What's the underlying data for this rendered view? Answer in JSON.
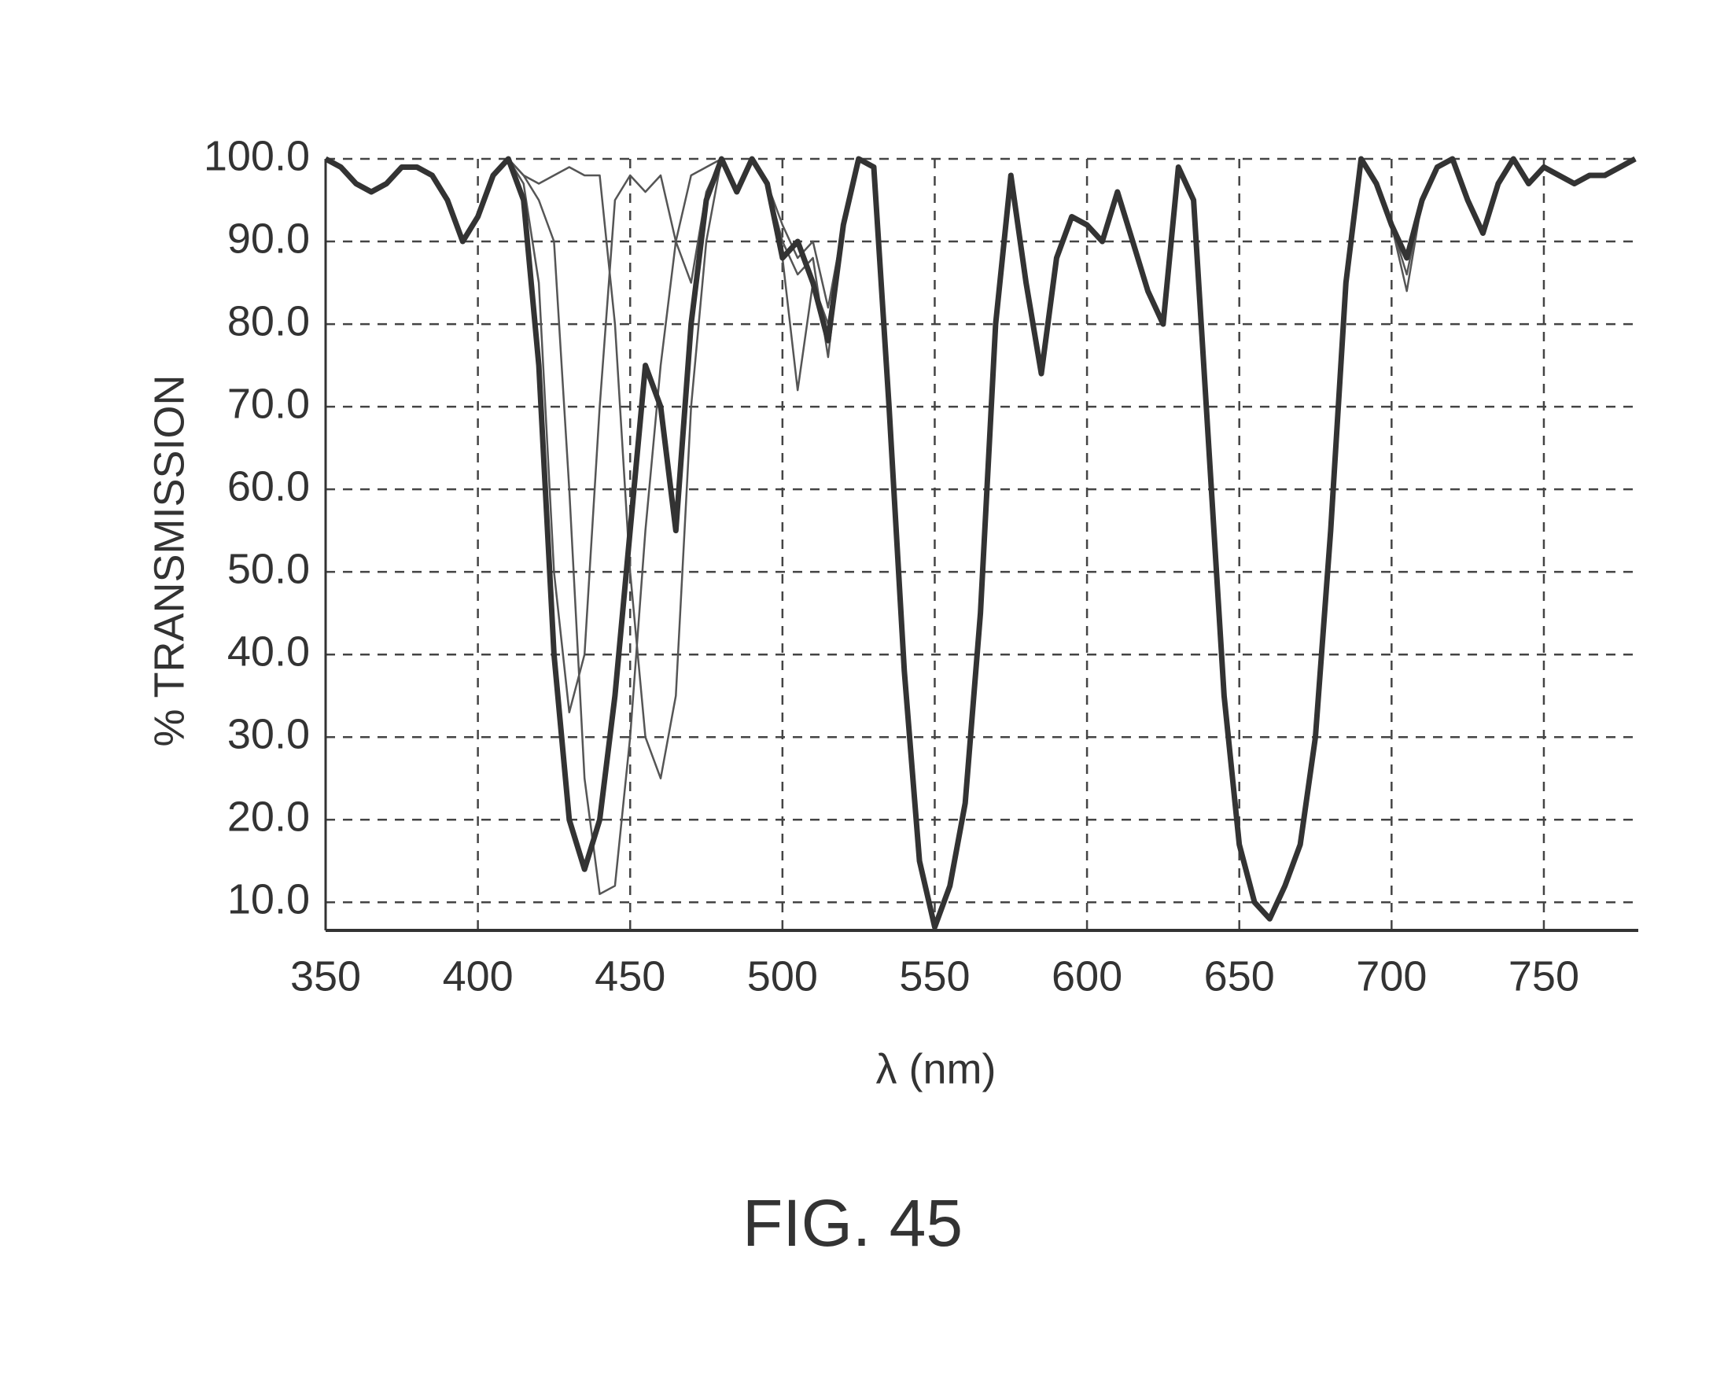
{
  "chart_data": {
    "type": "line",
    "figure_label": "FIG. 45",
    "xlabel": "λ (nm)",
    "ylabel": "% TRANSMISSION",
    "x": [
      350,
      355,
      360,
      365,
      370,
      375,
      380,
      385,
      390,
      395,
      400,
      405,
      410,
      415,
      420,
      425,
      430,
      435,
      440,
      445,
      450,
      455,
      460,
      465,
      470,
      475,
      480,
      485,
      490,
      495,
      500,
      505,
      510,
      515,
      520,
      525,
      530,
      535,
      540,
      545,
      550,
      555,
      560,
      565,
      570,
      575,
      580,
      585,
      590,
      595,
      600,
      605,
      610,
      615,
      620,
      625,
      630,
      635,
      640,
      645,
      650,
      655,
      660,
      665,
      670,
      675,
      680,
      685,
      690,
      695,
      700,
      705,
      710,
      715,
      720,
      725,
      730,
      735,
      740,
      745,
      750,
      755,
      760,
      765,
      770,
      775,
      780
    ],
    "series": [
      {
        "color": "#333333",
        "values": [
          100,
          99,
          97,
          96,
          97,
          99,
          99,
          98,
          95,
          90,
          93,
          98,
          100,
          95,
          75,
          40,
          20,
          14,
          20,
          35,
          55,
          75,
          70,
          55,
          80,
          95,
          100,
          96,
          100,
          97,
          88,
          90,
          85,
          78,
          92,
          100,
          99,
          70,
          38,
          15,
          7,
          12,
          22,
          45,
          80,
          98,
          85,
          74,
          88,
          93,
          92,
          90,
          96,
          90,
          84,
          80,
          99,
          95,
          65,
          35,
          17,
          10,
          8,
          12,
          17,
          30,
          55,
          85,
          100,
          97,
          92,
          88,
          95,
          99,
          100,
          95,
          91,
          97,
          100,
          97,
          99,
          98,
          97,
          98,
          98,
          99,
          100
        ]
      },
      {
        "color": "#555555",
        "values": [
          100,
          99,
          97,
          96,
          97,
          99,
          99,
          98,
          95,
          90,
          93,
          98,
          100,
          97,
          85,
          50,
          33,
          40,
          70,
          95,
          98,
          96,
          98,
          90,
          85,
          96,
          100,
          96,
          100,
          97,
          88,
          72,
          85,
          80,
          92,
          100,
          99,
          70,
          38,
          15,
          7,
          12,
          22,
          45,
          80,
          98,
          85,
          74,
          88,
          93,
          92,
          90,
          96,
          90,
          84,
          80,
          99,
          95,
          65,
          35,
          17,
          10,
          8,
          12,
          17,
          30,
          55,
          85,
          100,
          97,
          92,
          88,
          95,
          99,
          100,
          95,
          91,
          97,
          100,
          97,
          99,
          98,
          97,
          98,
          98,
          99,
          100
        ]
      },
      {
        "color": "#555555",
        "values": [
          100,
          99,
          97,
          96,
          97,
          99,
          99,
          98,
          95,
          90,
          93,
          98,
          100,
          98,
          95,
          90,
          60,
          25,
          11,
          12,
          30,
          55,
          75,
          90,
          98,
          99,
          100,
          96,
          100,
          97,
          92,
          88,
          90,
          82,
          92,
          100,
          99,
          70,
          38,
          15,
          7,
          12,
          22,
          45,
          80,
          98,
          85,
          74,
          88,
          93,
          92,
          90,
          96,
          90,
          84,
          80,
          99,
          95,
          65,
          35,
          17,
          10,
          8,
          12,
          17,
          30,
          55,
          85,
          100,
          97,
          92,
          86,
          95,
          99,
          100,
          95,
          91,
          97,
          100,
          97,
          99,
          98,
          97,
          98,
          98,
          99,
          100
        ]
      },
      {
        "color": "#555555",
        "values": [
          100,
          99,
          97,
          96,
          97,
          99,
          99,
          98,
          95,
          90,
          93,
          98,
          100,
          98,
          97,
          98,
          99,
          98,
          98,
          80,
          50,
          30,
          25,
          35,
          70,
          90,
          100,
          96,
          100,
          97,
          90,
          86,
          88,
          76,
          92,
          100,
          99,
          70,
          38,
          15,
          7,
          12,
          22,
          45,
          80,
          98,
          85,
          74,
          88,
          93,
          92,
          90,
          96,
          90,
          84,
          80,
          99,
          95,
          65,
          35,
          17,
          10,
          8,
          12,
          17,
          30,
          55,
          85,
          100,
          97,
          92,
          84,
          95,
          99,
          100,
          95,
          91,
          97,
          100,
          97,
          99,
          98,
          97,
          98,
          98,
          99,
          100
        ]
      }
    ],
    "xlim": [
      350,
      781
    ],
    "ylim": [
      6.6,
      100
    ],
    "xticks": [
      350,
      400,
      450,
      500,
      550,
      600,
      650,
      700,
      750
    ],
    "yticks": [
      {
        "value": 10,
        "label": "10.0"
      },
      {
        "value": 20,
        "label": "20.0"
      },
      {
        "value": 30,
        "label": "30.0"
      },
      {
        "value": 40,
        "label": "40.0"
      },
      {
        "value": 50,
        "label": "50.0"
      },
      {
        "value": 60,
        "label": "60.0"
      },
      {
        "value": 70,
        "label": "70.0"
      },
      {
        "value": 80,
        "label": "80.0"
      },
      {
        "value": 90,
        "label": "90.0"
      },
      {
        "value": 100,
        "label": "100.0"
      }
    ],
    "grid": true
  }
}
